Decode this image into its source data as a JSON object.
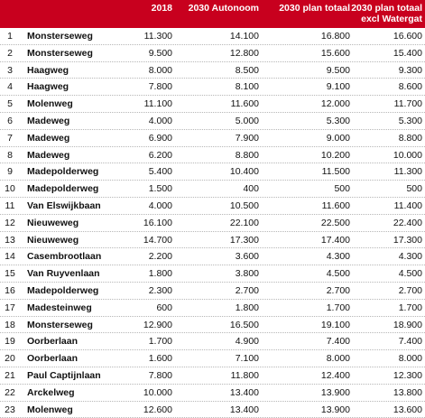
{
  "colors": {
    "header_background": "#c8001e",
    "header_text": "#ffffff"
  },
  "headers": {
    "col_2018": "2018",
    "col_autonoom": "2030 Autonoom",
    "col_plan_totaal": "2030 plan totaal",
    "col_excl_line1": "2030 plan totaal",
    "col_excl_line2": "excl Watergat"
  },
  "rows": [
    {
      "no": "1",
      "name": "Monsterseweg",
      "v2018": "11.300",
      "autonoom": "14.100",
      "plan": "16.800",
      "excl": "16.600"
    },
    {
      "no": "2",
      "name": "Monsterseweg",
      "v2018": "9.500",
      "autonoom": "12.800",
      "plan": "15.600",
      "excl": "15.400"
    },
    {
      "no": "3",
      "name": "Haagweg",
      "v2018": "8.000",
      "autonoom": "8.500",
      "plan": "9.500",
      "excl": "9.300"
    },
    {
      "no": "4",
      "name": "Haagweg",
      "v2018": "7.800",
      "autonoom": "8.100",
      "plan": "9.100",
      "excl": "8.600"
    },
    {
      "no": "5",
      "name": "Molenweg",
      "v2018": "11.100",
      "autonoom": "11.600",
      "plan": "12.000",
      "excl": "11.700"
    },
    {
      "no": "6",
      "name": "Madeweg",
      "v2018": "4.000",
      "autonoom": "5.000",
      "plan": "5.300",
      "excl": "5.300"
    },
    {
      "no": "7",
      "name": "Madeweg",
      "v2018": "6.900",
      "autonoom": "7.900",
      "plan": "9.000",
      "excl": "8.800"
    },
    {
      "no": "8",
      "name": "Madeweg",
      "v2018": "6.200",
      "autonoom": "8.800",
      "plan": "10.200",
      "excl": "10.000"
    },
    {
      "no": "9",
      "name": "Madepolderweg",
      "v2018": "5.400",
      "autonoom": "10.400",
      "plan": "11.500",
      "excl": "11.300"
    },
    {
      "no": "10",
      "name": "Madepolderweg",
      "v2018": "1.500",
      "autonoom": "400",
      "plan": "500",
      "excl": "500"
    },
    {
      "no": "11",
      "name": "Van Elswijkbaan",
      "v2018": "4.000",
      "autonoom": "10.500",
      "plan": "11.600",
      "excl": "11.400"
    },
    {
      "no": "12",
      "name": "Nieuweweg",
      "v2018": "16.100",
      "autonoom": "22.100",
      "plan": "22.500",
      "excl": "22.400"
    },
    {
      "no": "13",
      "name": "Nieuweweg",
      "v2018": "14.700",
      "autonoom": "17.300",
      "plan": "17.400",
      "excl": "17.300"
    },
    {
      "no": "14",
      "name": "Casembrootlaan",
      "v2018": "2.200",
      "autonoom": "3.600",
      "plan": "4.300",
      "excl": "4.300"
    },
    {
      "no": "15",
      "name": "Van Ruyvenlaan",
      "v2018": "1.800",
      "autonoom": "3.800",
      "plan": "4.500",
      "excl": "4.500"
    },
    {
      "no": "16",
      "name": "Madepolderweg",
      "v2018": "2.300",
      "autonoom": "2.700",
      "plan": "2.700",
      "excl": "2.700"
    },
    {
      "no": "17",
      "name": "Madesteinweg",
      "v2018": "600",
      "autonoom": "1.800",
      "plan": "1.700",
      "excl": "1.700"
    },
    {
      "no": "18",
      "name": "Monsterseweg",
      "v2018": "12.900",
      "autonoom": "16.500",
      "plan": "19.100",
      "excl": "18.900"
    },
    {
      "no": "19",
      "name": "Oorberlaan",
      "v2018": "1.700",
      "autonoom": "4.900",
      "plan": "7.400",
      "excl": "7.400"
    },
    {
      "no": "20",
      "name": "Oorberlaan",
      "v2018": "1.600",
      "autonoom": "7.100",
      "plan": "8.000",
      "excl": "8.000"
    },
    {
      "no": "21",
      "name": "Paul Captijnlaan",
      "v2018": "7.800",
      "autonoom": "11.800",
      "plan": "12.400",
      "excl": "12.300"
    },
    {
      "no": "22",
      "name": "Arckelweg",
      "v2018": "10.000",
      "autonoom": "13.400",
      "plan": "13.900",
      "excl": "13.800"
    },
    {
      "no": "23",
      "name": "Molenweg",
      "v2018": "12.600",
      "autonoom": "13.400",
      "plan": "13.900",
      "excl": "13.600"
    }
  ]
}
